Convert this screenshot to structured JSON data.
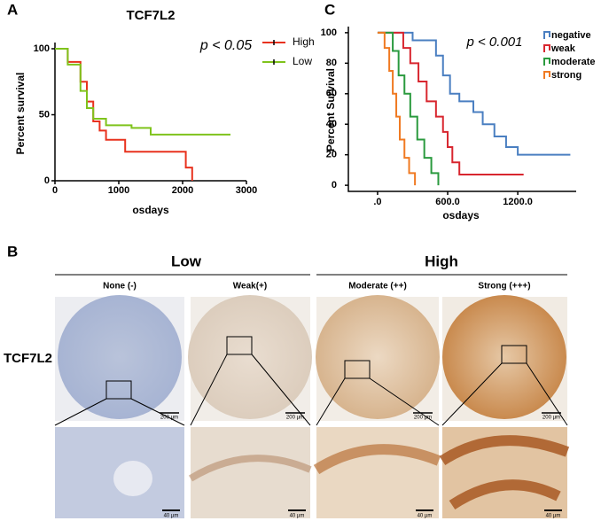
{
  "panels": {
    "a": "A",
    "b": "B",
    "c": "C"
  },
  "chart_data": [
    {
      "type": "line",
      "title": "TCF7L2",
      "annotation": "p < 0.05",
      "x_label": "osdays",
      "y_label": "Percent survival",
      "xlim": [
        0,
        3000
      ],
      "xticks": [
        0,
        1000,
        2000,
        3000
      ],
      "ylim": [
        0,
        100
      ],
      "yticks": [
        0,
        50,
        100
      ],
      "series": [
        {
          "name": "High",
          "color": "#e8321e",
          "x": [
            0,
            200,
            200,
            400,
            400,
            500,
            500,
            600,
            600,
            700,
            700,
            800,
            800,
            1100,
            1100,
            2050,
            2050,
            2150,
            2150
          ],
          "values": [
            100,
            100,
            90,
            90,
            75,
            75,
            60,
            60,
            45,
            45,
            38,
            38,
            31,
            31,
            22,
            22,
            10,
            10,
            0
          ]
        },
        {
          "name": "Low",
          "color": "#7fc31c",
          "x": [
            0,
            200,
            200,
            400,
            400,
            500,
            500,
            600,
            600,
            800,
            800,
            1200,
            1200,
            1500,
            1500,
            2750
          ],
          "values": [
            100,
            100,
            88,
            88,
            68,
            68,
            55,
            55,
            47,
            47,
            42,
            42,
            40,
            40,
            35,
            35
          ]
        }
      ]
    },
    {
      "type": "line",
      "annotation": "p < 0.001",
      "x_label": "osdays",
      "y_label": "Percent Survival",
      "xlim": [
        -250,
        1700
      ],
      "xticks": [
        {
          "value": 0,
          "label": ".0"
        },
        {
          "value": 600,
          "label": "600.0"
        },
        {
          "value": 1200,
          "label": "1200.0"
        }
      ],
      "ylim": [
        -4,
        104
      ],
      "yticks": [
        0,
        20,
        40,
        60,
        80,
        100
      ],
      "series": [
        {
          "name": "negative",
          "color": "#4a7fc1",
          "x": [
            0,
            300,
            300,
            500,
            500,
            560,
            560,
            620,
            620,
            700,
            700,
            820,
            820,
            900,
            900,
            1000,
            1000,
            1100,
            1100,
            1200,
            1200,
            1650
          ],
          "values": [
            100,
            100,
            95,
            95,
            85,
            85,
            72,
            72,
            60,
            60,
            55,
            55,
            48,
            48,
            40,
            40,
            32,
            32,
            25,
            25,
            20,
            20
          ]
        },
        {
          "name": "weak",
          "color": "#d8262f",
          "x": [
            0,
            220,
            220,
            280,
            280,
            350,
            350,
            420,
            420,
            500,
            500,
            560,
            560,
            600,
            600,
            640,
            640,
            700,
            700,
            1250
          ],
          "values": [
            100,
            100,
            90,
            90,
            80,
            80,
            68,
            68,
            55,
            55,
            45,
            45,
            35,
            35,
            25,
            25,
            15,
            15,
            7,
            7
          ]
        },
        {
          "name": "moderate",
          "color": "#2a9a3e",
          "x": [
            0,
            130,
            130,
            180,
            180,
            230,
            230,
            280,
            280,
            340,
            340,
            400,
            400,
            460,
            460,
            520,
            520
          ],
          "values": [
            100,
            100,
            88,
            88,
            72,
            72,
            60,
            60,
            45,
            45,
            30,
            30,
            18,
            18,
            8,
            8,
            0
          ]
        },
        {
          "name": "strong",
          "color": "#f07a22",
          "x": [
            0,
            60,
            60,
            100,
            100,
            130,
            130,
            160,
            160,
            190,
            190,
            230,
            230,
            270,
            270,
            320,
            320
          ],
          "values": [
            100,
            100,
            90,
            90,
            75,
            75,
            60,
            60,
            45,
            45,
            30,
            30,
            18,
            18,
            8,
            8,
            0
          ]
        }
      ]
    }
  ],
  "histology": {
    "marker": "TCF7L2",
    "groups": [
      "Low",
      "High"
    ],
    "columns": [
      "None (-)",
      "Weak(+)",
      "Moderate (++)",
      "Strong (+++)"
    ],
    "scale_bars": {
      "overview": "200 µm",
      "detail": "40 µm"
    }
  }
}
